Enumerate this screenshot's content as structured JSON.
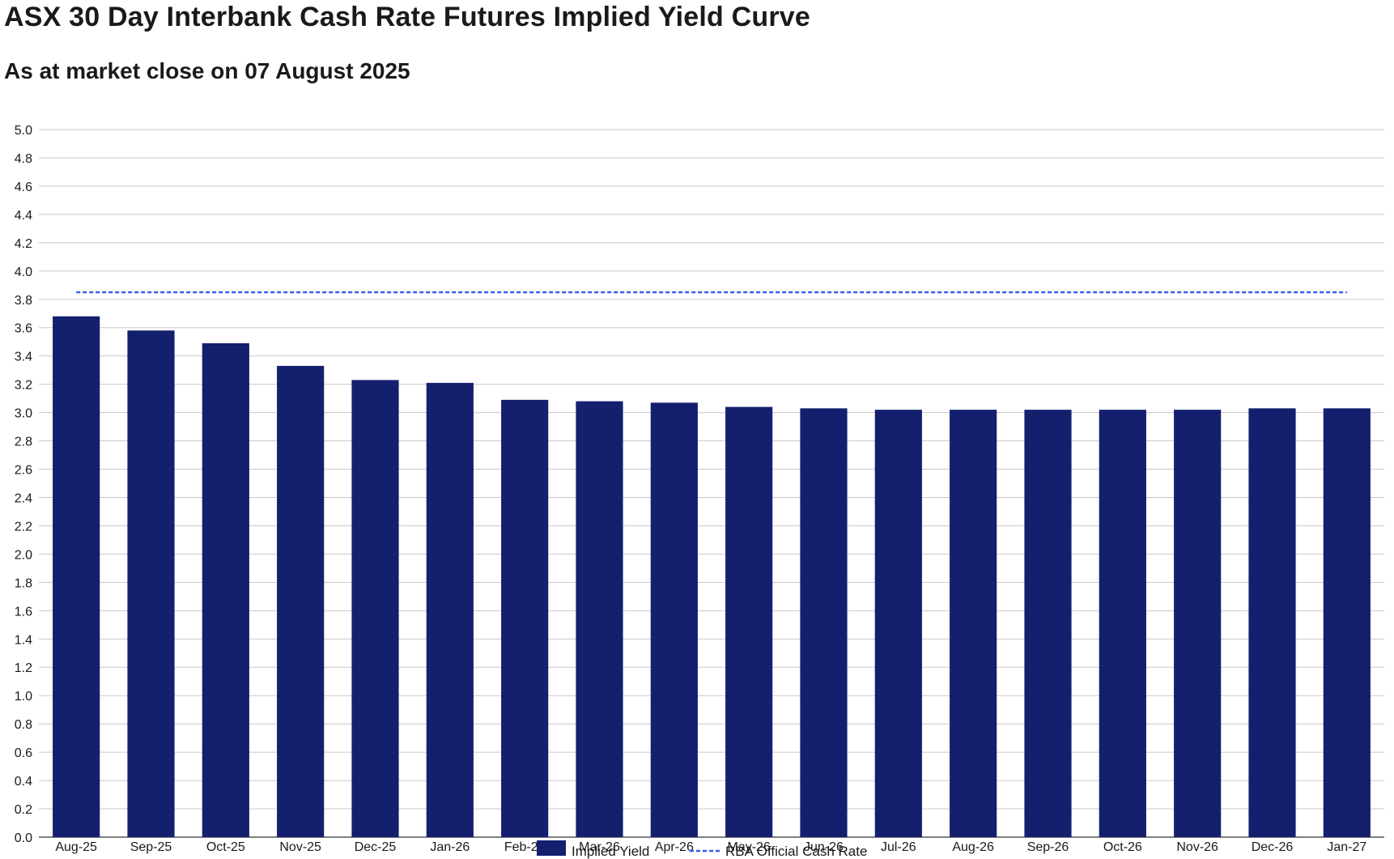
{
  "title": "ASX 30 Day Interbank Cash Rate Futures Implied Yield Curve",
  "subtitle": "As at market close on 07 August 2025",
  "colors": {
    "bar": "#141f6e",
    "reference_line": "#3a5ce8",
    "grid": "#c8c8c8",
    "axis": "#555555"
  },
  "chart_data": {
    "type": "bar",
    "title": "ASX 30 Day Interbank Cash Rate Futures Implied Yield Curve",
    "subtitle": "As at market close on 07 August 2025",
    "xlabel": "",
    "ylabel": "",
    "ylim": [
      0,
      5.0
    ],
    "ytick_step": 0.2,
    "yticks": [
      "0.0",
      "0.2",
      "0.4",
      "0.6",
      "0.8",
      "1.0",
      "1.2",
      "1.4",
      "1.6",
      "1.8",
      "2.0",
      "2.2",
      "2.4",
      "2.6",
      "2.8",
      "3.0",
      "3.2",
      "3.4",
      "3.6",
      "3.8",
      "4.0",
      "4.2",
      "4.4",
      "4.6",
      "4.8",
      "5.0"
    ],
    "grid": true,
    "legend_position": "bottom-center",
    "categories": [
      "Aug-25",
      "Sep-25",
      "Oct-25",
      "Nov-25",
      "Dec-25",
      "Jan-26",
      "Feb-26",
      "Mar-26",
      "Apr-26",
      "May-26",
      "Jun-26",
      "Jul-26",
      "Aug-26",
      "Sep-26",
      "Oct-26",
      "Nov-26",
      "Dec-26",
      "Jan-27"
    ],
    "series": [
      {
        "name": "Implied Yield",
        "kind": "bar",
        "values": [
          3.68,
          3.58,
          3.49,
          3.33,
          3.23,
          3.21,
          3.09,
          3.08,
          3.07,
          3.04,
          3.03,
          3.02,
          3.02,
          3.02,
          3.02,
          3.02,
          3.03,
          3.03
        ]
      },
      {
        "name": "RBA Official Cash Rate",
        "kind": "line",
        "style": "dashed",
        "values": [
          3.85,
          3.85,
          3.85,
          3.85,
          3.85,
          3.85,
          3.85,
          3.85,
          3.85,
          3.85,
          3.85,
          3.85,
          3.85,
          3.85,
          3.85,
          3.85,
          3.85,
          3.85
        ]
      }
    ]
  }
}
